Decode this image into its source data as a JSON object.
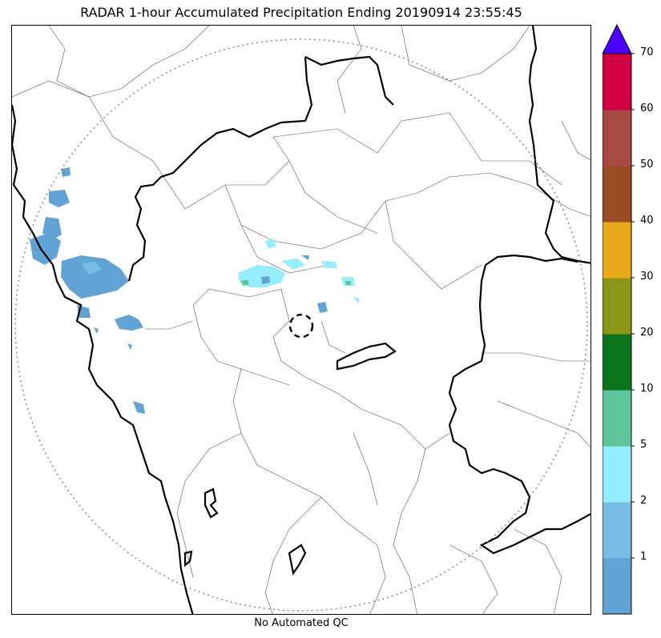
{
  "title": "RADAR 1-hour Accumulated Precipitation Ending 20190914 23:55:45",
  "subtitle": "No Automated QC",
  "colorbar": {
    "ticks": [
      "1",
      "2",
      "5",
      "10",
      "20",
      "30",
      "40",
      "50",
      "60",
      "70"
    ],
    "bins": [
      {
        "color": "#62a3d5"
      },
      {
        "color": "#78bde3"
      },
      {
        "color": "#96edff"
      },
      {
        "color": "#5cc59c"
      },
      {
        "color": "#0d741e"
      },
      {
        "color": "#8a9516"
      },
      {
        "color": "#e8a91b"
      },
      {
        "color": "#9a4c25"
      },
      {
        "color": "#a84a43"
      },
      {
        "color": "#d10045"
      }
    ],
    "extend_color": "#4e00ff"
  },
  "map": {
    "range_ring": "dotted",
    "radar_site_marker": "dashed-circle"
  }
}
